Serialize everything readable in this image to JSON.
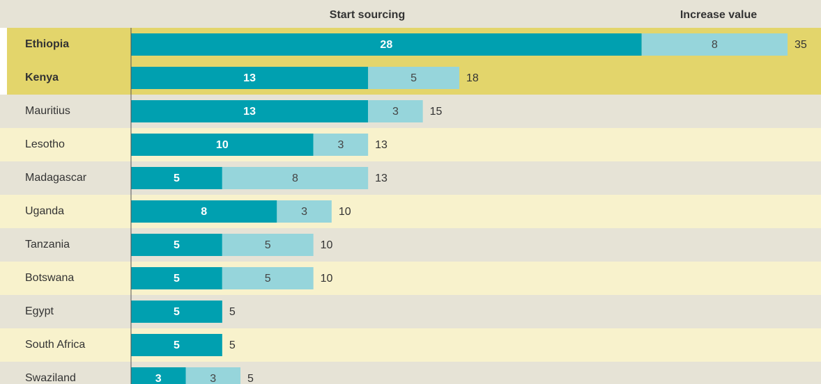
{
  "chart_data": {
    "type": "stacked-bar-horizontal",
    "categories": [
      "Ethiopia",
      "Kenya",
      "Mauritius",
      "Lesotho",
      "Madagascar",
      "Uganda",
      "Tanzania",
      "Botswana",
      "Egypt",
      "South Africa",
      "Swaziland"
    ],
    "highlight": [
      true,
      true,
      false,
      false,
      false,
      false,
      false,
      false,
      false,
      false,
      false
    ],
    "series": [
      {
        "name": "Start sourcing",
        "color": "#00a0b0",
        "values": [
          28,
          13,
          13,
          10,
          5,
          8,
          5,
          5,
          5,
          5,
          3
        ]
      },
      {
        "name": "Increase value",
        "color": "#96d5db",
        "values": [
          8,
          5,
          3,
          3,
          8,
          3,
          5,
          5,
          null,
          null,
          3
        ]
      }
    ],
    "totals": [
      35,
      18,
      15,
      13,
      13,
      10,
      10,
      10,
      5,
      5,
      5
    ],
    "xlim": [
      0,
      36
    ]
  }
}
